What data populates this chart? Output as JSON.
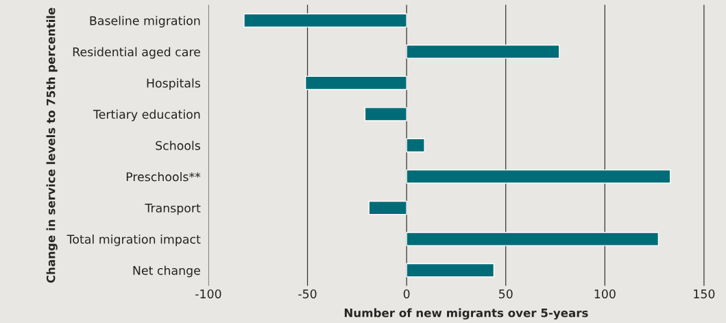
{
  "chart_data": {
    "type": "bar",
    "orientation": "horizontal",
    "xlabel": "Number of new migrants over 5-years",
    "ylabel": "Change in service levels to 75th percentile",
    "categories": [
      "Baseline migration",
      "Residential aged care",
      "Hospitals",
      "Tertiary education",
      "Schools",
      "Preschools**",
      "Transport",
      "Total migration impact",
      "Net change"
    ],
    "values": [
      -82,
      77,
      -51,
      -21,
      9,
      133,
      -19,
      127,
      44
    ],
    "color": "#006c77",
    "xlim": [
      -100,
      160
    ],
    "xticks": [
      -100,
      -50,
      0,
      50,
      100,
      150
    ],
    "grid": "x"
  }
}
